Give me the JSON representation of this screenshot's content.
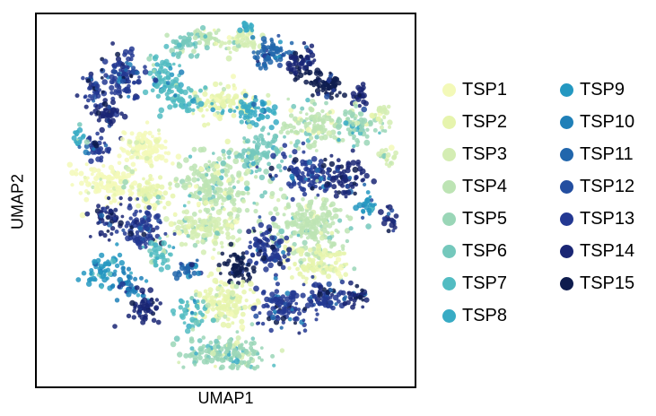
{
  "chart_data": {
    "type": "scatter",
    "title": "",
    "xlabel": "UMAP1",
    "ylabel": "UMAP2",
    "grid": false,
    "ticks": false,
    "legend_placement": "right, two columns",
    "series": [
      {
        "name": "TSP1",
        "color": "#f3f9b8"
      },
      {
        "name": "TSP2",
        "color": "#e6f4ad"
      },
      {
        "name": "TSP3",
        "color": "#d4edb3"
      },
      {
        "name": "TSP4",
        "color": "#bde4b4"
      },
      {
        "name": "TSP5",
        "color": "#9ad6b7"
      },
      {
        "name": "TSP6",
        "color": "#74c8bc"
      },
      {
        "name": "TSP7",
        "color": "#52bcc2"
      },
      {
        "name": "TSP8",
        "color": "#38abc4"
      },
      {
        "name": "TSP9",
        "color": "#2498c1"
      },
      {
        "name": "TSP10",
        "color": "#1f80b8"
      },
      {
        "name": "TSP11",
        "color": "#2166ac"
      },
      {
        "name": "TSP12",
        "color": "#234ea0"
      },
      {
        "name": "TSP13",
        "color": "#233892"
      },
      {
        "name": "TSP14",
        "color": "#1a2674"
      },
      {
        "name": "TSP15",
        "color": "#0e1c4e"
      }
    ]
  }
}
